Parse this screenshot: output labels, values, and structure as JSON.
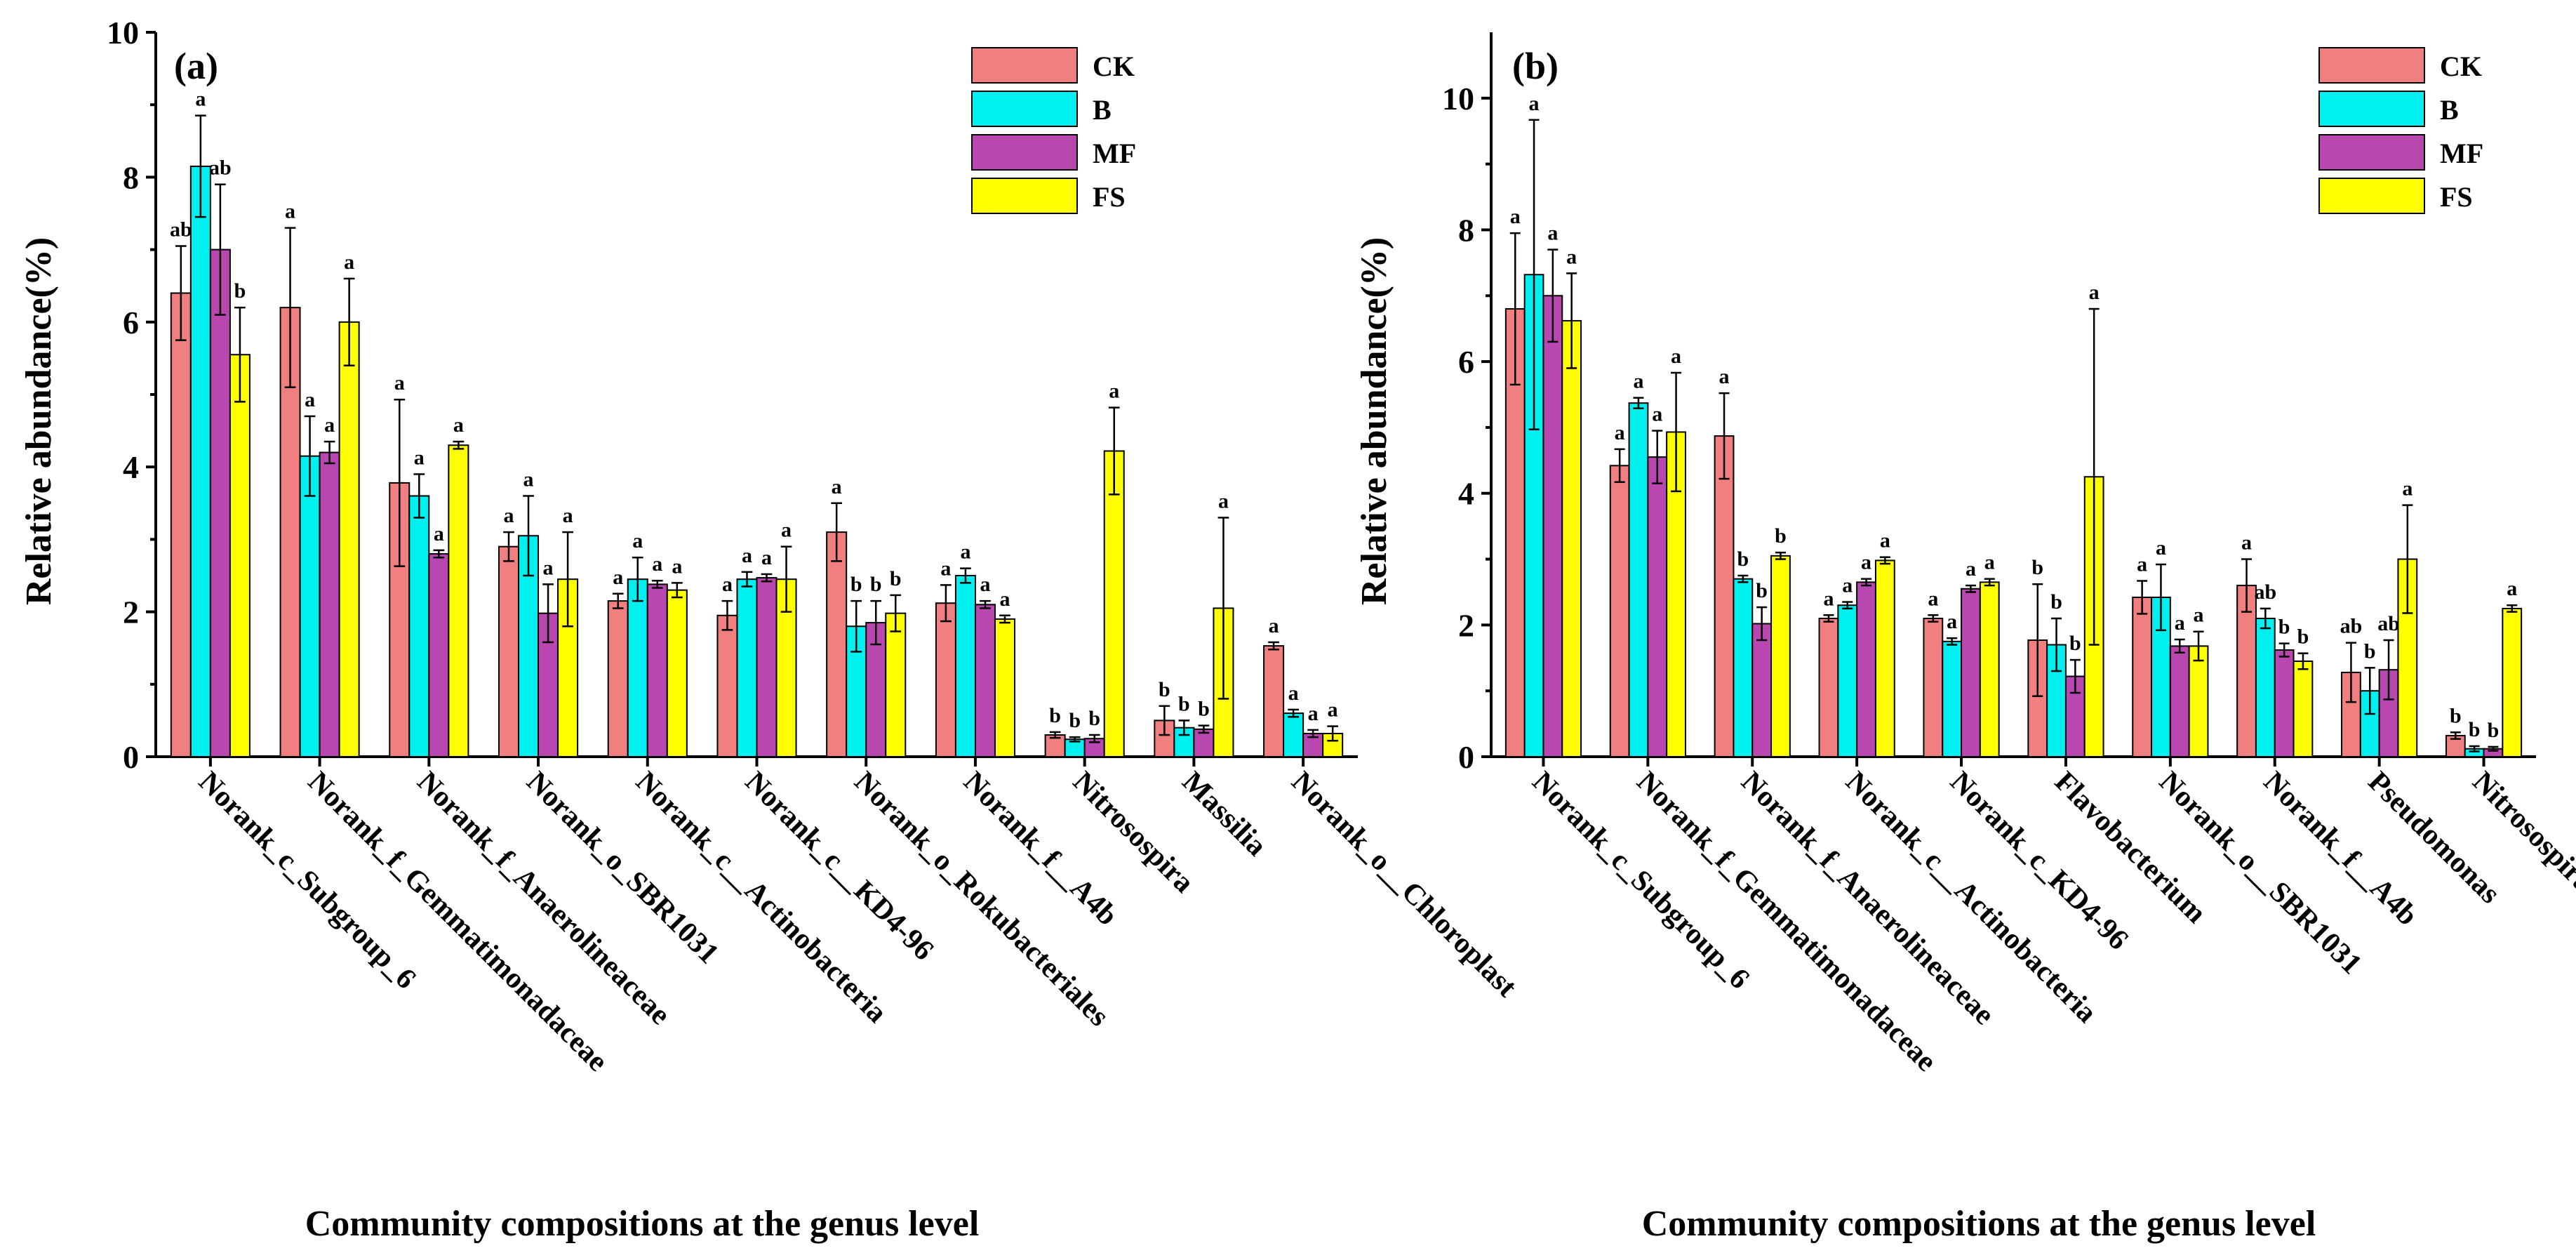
{
  "colors": {
    "CK": "#F08080",
    "B": "#00F0F0",
    "MF": "#B848B0",
    "FS": "#FFFF00"
  },
  "chart_data": [
    {
      "type": "bar",
      "panel_label": "(a)",
      "xlabel": "Community compositions at the genus level",
      "ylabel": "Relative abundance(%)",
      "ylim": [
        0,
        10
      ],
      "yticks": [
        0,
        2,
        4,
        6,
        8,
        10
      ],
      "legend": [
        "CK",
        "B",
        "MF",
        "FS"
      ],
      "legend_position": "top-right",
      "categories": [
        "Norank_c_Subgroup_6",
        "Norank_f_Gemmatimonadaceae",
        "Norank_f_Anaerolineaceae",
        "Norank_o_SBR1031",
        "Norank_c__Actinobacteria",
        "Norank_c__KD4-96",
        "Norank_o_Rokubacteriales",
        "Norank_f__A4b",
        "Nitrosospira",
        "Massilia",
        "Norank_o__Chloroplast"
      ],
      "series": [
        {
          "name": "CK",
          "values": [
            6.4,
            6.2,
            3.78,
            2.9,
            2.15,
            1.95,
            3.1,
            2.12,
            0.3,
            0.5,
            1.53
          ],
          "errors": [
            0.65,
            1.1,
            1.15,
            0.2,
            0.1,
            0.2,
            0.4,
            0.25,
            0.04,
            0.2,
            0.05
          ],
          "sig": [
            "ab",
            "a",
            "a",
            "a",
            "a",
            "a",
            "a",
            "a",
            "b",
            "b",
            "a"
          ]
        },
        {
          "name": "B",
          "values": [
            8.15,
            4.15,
            3.6,
            3.05,
            2.45,
            2.45,
            1.8,
            2.5,
            0.24,
            0.4,
            0.6
          ],
          "errors": [
            0.7,
            0.55,
            0.3,
            0.55,
            0.3,
            0.1,
            0.35,
            0.1,
            0.03,
            0.1,
            0.05
          ],
          "sig": [
            "a",
            "a",
            "a",
            "a",
            "a",
            "a",
            "b",
            "a",
            "b",
            "b",
            "a"
          ]
        },
        {
          "name": "MF",
          "values": [
            7.0,
            4.2,
            2.8,
            1.98,
            2.38,
            2.47,
            1.85,
            2.1,
            0.25,
            0.38,
            0.32
          ],
          "errors": [
            0.9,
            0.15,
            0.05,
            0.4,
            0.05,
            0.05,
            0.3,
            0.05,
            0.05,
            0.05,
            0.05
          ],
          "sig": [
            "ab",
            "a",
            "a",
            "a",
            "a",
            "a",
            "b",
            "a",
            "b",
            "b",
            "a"
          ]
        },
        {
          "name": "FS",
          "values": [
            5.55,
            6.0,
            4.3,
            2.45,
            2.3,
            2.45,
            1.98,
            1.9,
            4.22,
            2.05,
            0.32
          ],
          "errors": [
            0.65,
            0.6,
            0.05,
            0.65,
            0.1,
            0.45,
            0.25,
            0.05,
            0.6,
            1.25,
            0.1
          ],
          "sig": [
            "b",
            "a",
            "a",
            "a",
            "a",
            "a",
            "b",
            "a",
            "a",
            "a",
            "a"
          ]
        }
      ]
    },
    {
      "type": "bar",
      "panel_label": "(b)",
      "xlabel": "Community compositions at the genus level",
      "ylabel": "Relative abundance(%)",
      "ylim": [
        0,
        11
      ],
      "yticks": [
        0,
        2,
        4,
        6,
        8,
        10
      ],
      "legend": [
        "CK",
        "B",
        "MF",
        "FS"
      ],
      "legend_position": "top-right",
      "categories": [
        "Norank_c_Subgroup_6",
        "Norank_f_Gemmatimonadaceae",
        "Norank_f_Anaerolineaceae",
        "Norank_c__Actinobacteria",
        "Norank_c_KD4-96",
        "Flavobacterium",
        "Norank_o__SBR1031",
        "Norank_f__A4b",
        "Pseudomonas",
        "Nitrosospira"
      ],
      "series": [
        {
          "name": "CK",
          "values": [
            6.8,
            4.42,
            4.87,
            2.1,
            2.1,
            1.77,
            2.42,
            2.6,
            1.28,
            0.32
          ],
          "errors": [
            1.15,
            0.25,
            0.65,
            0.05,
            0.05,
            0.85,
            0.25,
            0.4,
            0.45,
            0.05
          ],
          "sig": [
            "a",
            "a",
            "a",
            "a",
            "a",
            "b",
            "a",
            "a",
            "ab",
            "b"
          ]
        },
        {
          "name": "B",
          "values": [
            7.32,
            5.37,
            2.7,
            2.3,
            1.75,
            1.7,
            2.42,
            2.1,
            1.0,
            0.12
          ],
          "errors": [
            2.35,
            0.08,
            0.05,
            0.05,
            0.05,
            0.4,
            0.5,
            0.15,
            0.35,
            0.04
          ],
          "sig": [
            "a",
            "a",
            "b",
            "a",
            "a",
            "b",
            "a",
            "ab",
            "b",
            "b"
          ]
        },
        {
          "name": "MF",
          "values": [
            7.0,
            4.55,
            2.02,
            2.65,
            2.55,
            1.22,
            1.68,
            1.62,
            1.32,
            0.12
          ],
          "errors": [
            0.7,
            0.4,
            0.25,
            0.05,
            0.05,
            0.25,
            0.1,
            0.1,
            0.45,
            0.03
          ],
          "sig": [
            "a",
            "a",
            "b",
            "a",
            "a",
            "b",
            "a",
            "b",
            "ab",
            "b"
          ]
        },
        {
          "name": "FS",
          "values": [
            6.62,
            4.93,
            3.05,
            2.98,
            2.65,
            4.25,
            1.68,
            1.45,
            3.0,
            2.25
          ],
          "errors": [
            0.72,
            0.9,
            0.05,
            0.05,
            0.05,
            2.55,
            0.22,
            0.12,
            0.82,
            0.05
          ],
          "sig": [
            "a",
            "a",
            "b",
            "a",
            "a",
            "a",
            "a",
            "b",
            "a",
            "a"
          ]
        }
      ]
    }
  ]
}
